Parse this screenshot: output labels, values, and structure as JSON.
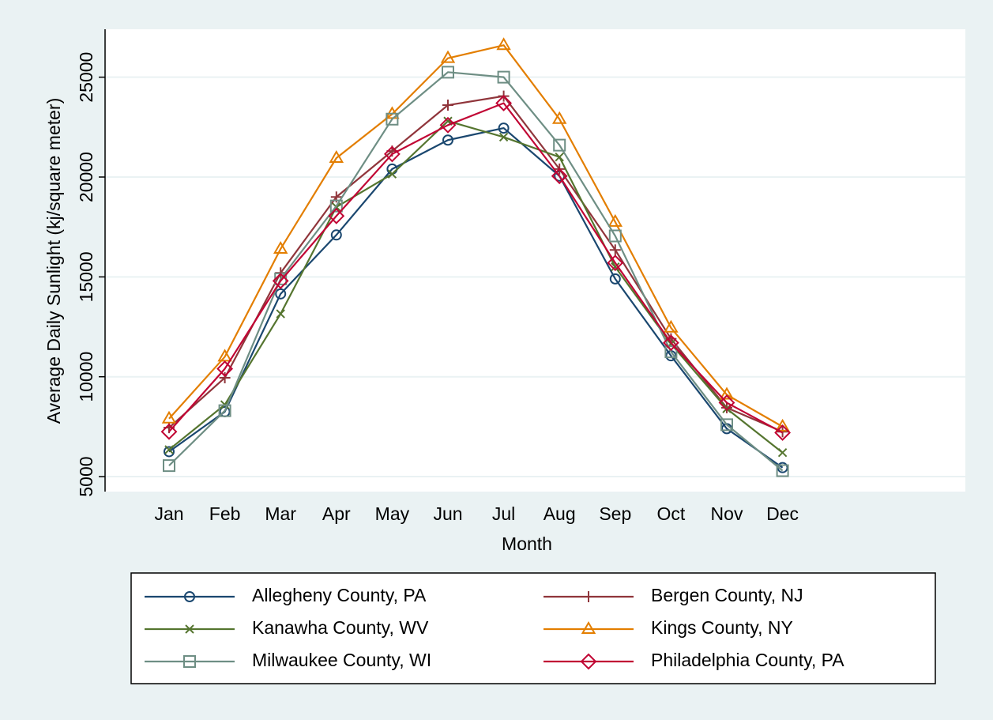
{
  "chart_data": {
    "type": "line",
    "x_label": "Month",
    "y_label": "Average Daily Sunlight (kj/square meter)",
    "categories": [
      "Jan",
      "Feb",
      "Mar",
      "Apr",
      "May",
      "Jun",
      "Jul",
      "Aug",
      "Sep",
      "Oct",
      "Nov",
      "Dec"
    ],
    "ylim": [
      4250,
      27400
    ],
    "yticks": [
      5000,
      10000,
      15000,
      20000,
      25000
    ],
    "grid": true,
    "legend": "bottom",
    "series": [
      {
        "name": "Allegheny County, PA",
        "color": "#1a476f",
        "marker": "circle",
        "values": [
          6250,
          8250,
          14150,
          17100,
          20400,
          21850,
          22450,
          20050,
          14900,
          11050,
          7400,
          5450
        ]
      },
      {
        "name": "Bergen County, NJ",
        "color": "#90353b",
        "marker": "plus",
        "values": [
          7450,
          9950,
          15200,
          19000,
          21300,
          23600,
          24050,
          20400,
          16350,
          11900,
          8450,
          7250
        ]
      },
      {
        "name": "Kanawha County, WV",
        "color": "#55752f",
        "marker": "x",
        "values": [
          6350,
          8600,
          13150,
          18500,
          20150,
          22800,
          22000,
          21000,
          15500,
          11650,
          8400,
          6200
        ]
      },
      {
        "name": "Kings County, NY",
        "color": "#e37e00",
        "marker": "triangle",
        "values": [
          7900,
          11000,
          16400,
          20950,
          23150,
          25950,
          26600,
          22900,
          17750,
          12450,
          9100,
          7500
        ]
      },
      {
        "name": "Milwaukee County, WI",
        "color": "#6e8e84",
        "marker": "square",
        "values": [
          5550,
          8300,
          14900,
          18550,
          22900,
          25250,
          25000,
          21600,
          17050,
          11250,
          7600,
          5300
        ]
      },
      {
        "name": "Philadelphia County, PA",
        "color": "#c10534",
        "marker": "diamond",
        "values": [
          7250,
          10400,
          14800,
          18050,
          21150,
          22600,
          23700,
          20050,
          15700,
          11700,
          8700,
          7200
        ]
      }
    ]
  }
}
